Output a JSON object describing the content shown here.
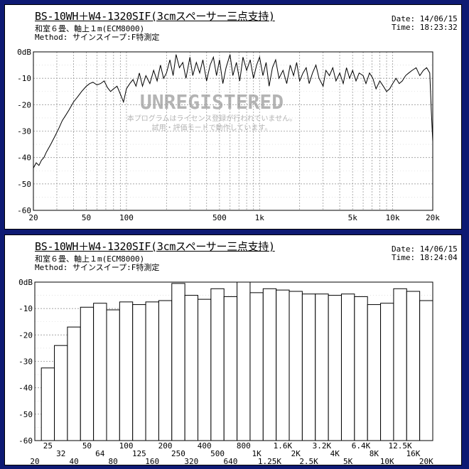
{
  "charts": [
    {
      "title": "BS-10WH＋W4-1320SIF(3cmスペーサー三点支持)",
      "subtitle": "和室６畳、軸上１m(ECM8000)",
      "method": "Method: サインスイープ:F特測定",
      "date": "Date: 14/06/15",
      "time": "Time: 18:23:32"
    },
    {
      "title": "BS-10WH＋W4-1320SIF(3cmスペーサー三点支持)",
      "subtitle": "和室６畳、軸上１m(ECM8000)",
      "method": "Method: サインスイープ:F特測定",
      "date": "Date: 14/06/15",
      "time": "Time: 18:24:04"
    }
  ],
  "watermark": {
    "headline": "UNREGISTERED",
    "line1": "本プログラムはライセンス登録が行われていません。",
    "line2": "試用・評価モードで動作しています。"
  },
  "colors": {
    "background": "#0e1a73",
    "panel": "#ffffff",
    "ink": "#000000",
    "grid": "#9a9a9a",
    "watermark": "#b4b4b4"
  },
  "chart_data": [
    {
      "type": "line",
      "xscale": "log",
      "xlim": [
        20,
        20000
      ],
      "ylim": [
        -60,
        0
      ],
      "ytick_labels": [
        "0dB",
        "-10",
        "-20",
        "-30",
        "-40",
        "-50",
        "-60"
      ],
      "xtick_labels": [
        "20",
        "50",
        "100",
        "500",
        "1k",
        "5k",
        "10k",
        "20k"
      ],
      "grid": true,
      "x": [
        20,
        21,
        22,
        23,
        24,
        25,
        27,
        29,
        31,
        33,
        35,
        37,
        40,
        43,
        46,
        50,
        53,
        56,
        60,
        64,
        68,
        72,
        76,
        80,
        85,
        90,
        95,
        100,
        106,
        112,
        118,
        125,
        132,
        140,
        150,
        160,
        170,
        180,
        190,
        200,
        212,
        224,
        236,
        250,
        265,
        280,
        300,
        315,
        335,
        355,
        375,
        400,
        425,
        450,
        475,
        500,
        530,
        560,
        600,
        630,
        670,
        710,
        750,
        800,
        850,
        900,
        950,
        1000,
        1060,
        1120,
        1180,
        1250,
        1320,
        1400,
        1500,
        1600,
        1700,
        1800,
        1900,
        2000,
        2120,
        2240,
        2360,
        2500,
        2650,
        2800,
        3000,
        3150,
        3350,
        3550,
        3750,
        4000,
        4250,
        4500,
        4750,
        5000,
        5300,
        5600,
        6000,
        6300,
        6700,
        7100,
        7500,
        8000,
        8500,
        9000,
        9500,
        10000,
        10600,
        11200,
        11800,
        12500,
        13200,
        14000,
        15000,
        16000,
        17000,
        18000,
        19000,
        19500,
        20000
      ],
      "y": [
        -44,
        -42,
        -43,
        -41,
        -40,
        -38,
        -35,
        -32,
        -29,
        -26,
        -24,
        -22,
        -19,
        -17,
        -15,
        -13,
        -12,
        -11.5,
        -12.5,
        -12,
        -11,
        -13.5,
        -15,
        -14,
        -13,
        -16,
        -19,
        -14,
        -12,
        -10.5,
        -13,
        -8,
        -13,
        -9,
        -12,
        -7,
        -11,
        -5,
        -10,
        -8,
        -3,
        -9,
        -1,
        -6,
        -4,
        -10,
        -2,
        -9,
        -4,
        -8,
        -3,
        -11,
        -5,
        -2,
        -9,
        -3,
        -12,
        -6,
        -1,
        -9,
        -4,
        -11,
        -2,
        -7,
        -3,
        -10,
        -5,
        -2,
        -9,
        -4,
        -13,
        -6,
        -3,
        -10,
        -7,
        -12,
        -5,
        -9,
        -4,
        -11,
        -8,
        -6,
        -12,
        -8,
        -5,
        -10,
        -13,
        -7,
        -9,
        -6,
        -11,
        -8,
        -12,
        -6,
        -10,
        -7,
        -11,
        -8,
        -9,
        -12,
        -8,
        -10,
        -14,
        -11,
        -13,
        -15,
        -14,
        -12,
        -10,
        -12,
        -11,
        -9,
        -8,
        -7,
        -6,
        -9,
        -7,
        -6,
        -8,
        -22,
        -34
      ]
    },
    {
      "type": "bar",
      "ylim": [
        -60,
        0
      ],
      "ytick_labels": [
        "0dB",
        "-10",
        "-20",
        "-30",
        "-40",
        "-50",
        "-60"
      ],
      "grid": true,
      "categories": [
        "25",
        "32",
        "40",
        "50",
        "64",
        "80",
        "100",
        "125",
        "160",
        "200",
        "250",
        "320",
        "400",
        "500",
        "640",
        "800",
        "1K",
        "1.25K",
        "1.6K",
        "2K",
        "2.5K",
        "3.2K",
        "4K",
        "5K",
        "6.4K",
        "8K",
        "10K",
        "12.5K",
        "16K",
        "20K"
      ],
      "xtick_labels_row1": [
        "25",
        "50",
        "100",
        "200",
        "400",
        "800",
        "1.6K",
        "3.2K",
        "6.4K",
        "12.5K"
      ],
      "xtick_labels_row2": [
        "32",
        "64",
        "125",
        "250",
        "500",
        "1K",
        "2K",
        "4K",
        "8K",
        "16K"
      ],
      "xtick_labels_row3": [
        "20",
        "40",
        "80",
        "160",
        "320",
        "640",
        "1.25K",
        "2.5K",
        "5K",
        "10K",
        "20K"
      ],
      "values": [
        -32.5,
        -24,
        -17,
        -9.5,
        -8,
        -10.5,
        -7.5,
        -8.5,
        -7.5,
        -7,
        -0.5,
        -5,
        -6.5,
        -2.5,
        -5.5,
        0,
        -4,
        -2.5,
        -3,
        -3.5,
        -4.5,
        -4.5,
        -5,
        -4.5,
        -5.5,
        -8.5,
        -8,
        -2.5,
        -3.5,
        -7
      ]
    }
  ]
}
